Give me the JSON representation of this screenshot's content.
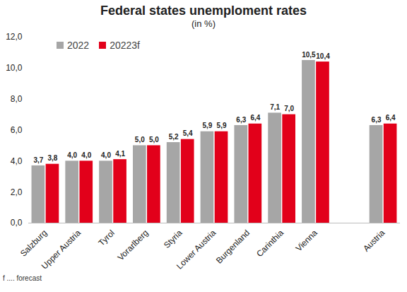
{
  "chart_data": {
    "type": "bar",
    "title": "Federal states unemploment rates",
    "subtitle": "(in %)",
    "caption": "f .... forecast",
    "categories": [
      "Salzburg",
      "Upper Austria",
      "Tyrol",
      "Vorarlberg",
      "Styria",
      "Lower Austria",
      "Burgenland",
      "Carinthia",
      "Vienna",
      null,
      "Austria"
    ],
    "series": [
      {
        "name": "2022",
        "color": "#a6a6a6",
        "values": [
          3.7,
          4.0,
          4.0,
          5.0,
          5.2,
          5.9,
          6.3,
          7.1,
          10.5,
          null,
          6.3
        ],
        "value_labels": [
          "3,7",
          "4,0",
          "4,0",
          "5,0",
          "5,2",
          "5,9",
          "6,3",
          "7,1",
          "10,5",
          null,
          "6,3"
        ]
      },
      {
        "name": "20223f",
        "color": "#e2001a",
        "values": [
          3.8,
          4.0,
          4.1,
          5.0,
          5.4,
          5.9,
          6.4,
          7.0,
          10.4,
          null,
          6.4
        ],
        "value_labels": [
          "3,8",
          "4,0",
          "4,1",
          "5,0",
          "5,4",
          "5,9",
          "6,4",
          "7,0",
          "10,4",
          null,
          "6,4"
        ]
      }
    ],
    "ylim": [
      0,
      12
    ],
    "yticks": [
      {
        "value": 0,
        "label": "0,0"
      },
      {
        "value": 2,
        "label": "2,0"
      },
      {
        "value": 4,
        "label": "4,0"
      },
      {
        "value": 6,
        "label": "6,0"
      },
      {
        "value": 8,
        "label": "8,0"
      },
      {
        "value": 10,
        "label": "10,0"
      },
      {
        "value": 12,
        "label": "12,0"
      }
    ],
    "grid": false,
    "legend": "top-left",
    "data_labels": true
  }
}
